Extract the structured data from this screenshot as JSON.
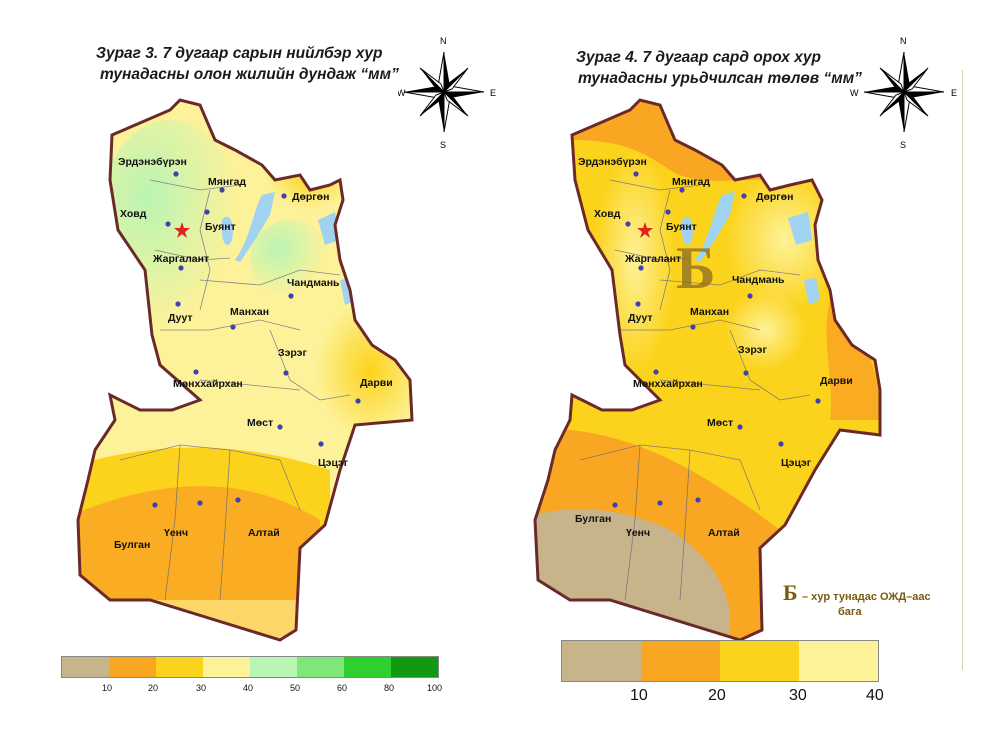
{
  "left": {
    "title_line1": "Зураг 3.  7 дугаар сарын нийлбэр хур",
    "title_line2": "тунадасны олон жилийн дундаж “мм”",
    "legend_colors": [
      "#c8b48a",
      "#f9a623",
      "#fcd31c",
      "#fdf29a",
      "#b9f5b3",
      "#7ee77a",
      "#2fcf2f",
      "#119a11"
    ],
    "legend_ticks": [
      "10",
      "20",
      "30",
      "40",
      "50",
      "60",
      "80",
      "100"
    ]
  },
  "right": {
    "title_line1": "Зураг 4.  7 дугаар сард орох хур",
    "title_line2": "тунадасны урьдчилсан төлөв “мм”",
    "big_letter": "Б",
    "note_letter": "Б",
    "note_line1": "–  хур тунадас ОЖД–аас",
    "note_line2": "бага",
    "legend_colors": [
      "#c8b48a",
      "#f9a623",
      "#fcd31c",
      "#fdf29a"
    ],
    "legend_ticks": [
      "10",
      "20",
      "30",
      "40"
    ]
  },
  "compass": {
    "n": "N",
    "s": "S",
    "e": "E",
    "w": "W"
  },
  "places": {
    "erdenburen": "Эрдэнэбүрэн",
    "myangad": "Мянгад",
    "khovd": "Ховд",
    "buyant": "Буянт",
    "durgun": "Дөргөн",
    "jargalant": "Жаргалант",
    "chandmani": "Чандмань",
    "duut": "Дуут",
    "mankhan": "Манхан",
    "zereg": "Зэрэг",
    "munkhkhairkhan": "Мөнххайрхан",
    "darvi": "Дарви",
    "most": "Мөст",
    "tsetseg": "Цэцэг",
    "bulgan": "Булган",
    "uyench": "Үенч",
    "altai": "Алтай"
  }
}
